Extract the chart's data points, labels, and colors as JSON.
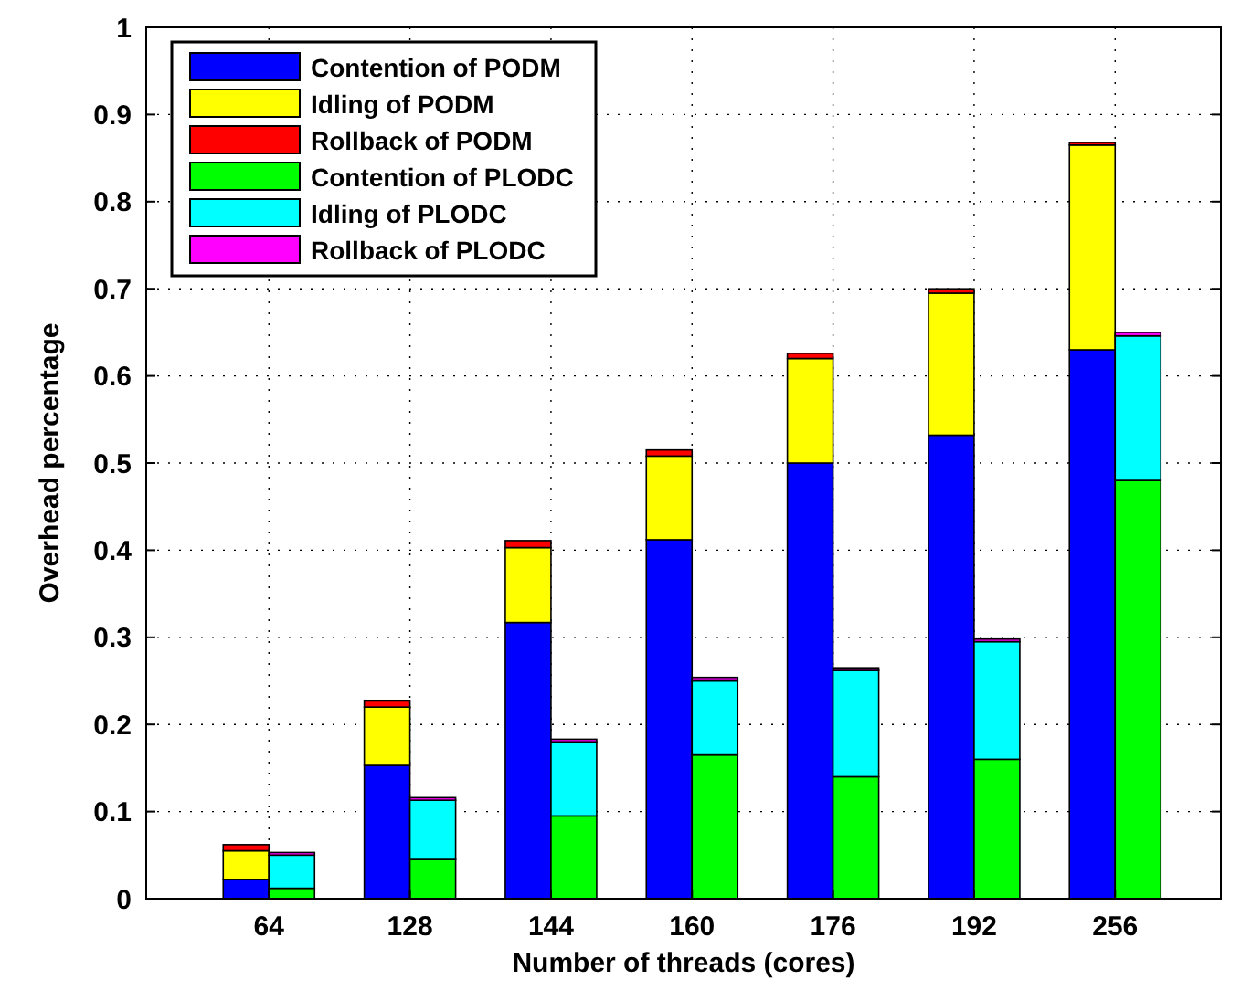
{
  "chart_data": [
    {
      "type": "bar",
      "stacked": true,
      "xlabel": "Number of threads (cores)",
      "ylabel": "Overhead percentage",
      "categories": [
        "64",
        "128",
        "144",
        "160",
        "176",
        "192",
        "256"
      ],
      "series": [
        {
          "name": "Contention of PODM",
          "color": "#0000ff",
          "values": [
            0.022,
            0.153,
            0.317,
            0.412,
            0.5,
            0.532,
            0.63
          ]
        },
        {
          "name": "Idling of PODM",
          "color": "#ffff00",
          "values": [
            0.033,
            0.067,
            0.086,
            0.096,
            0.12,
            0.163,
            0.235
          ]
        },
        {
          "name": "Rollback of PODM",
          "color": "#ff0000",
          "values": [
            0.007,
            0.007,
            0.008,
            0.007,
            0.006,
            0.005,
            0.003
          ]
        }
      ],
      "ylim": [
        0,
        1
      ],
      "yticks": [
        0,
        0.1,
        0.2,
        0.3,
        0.4,
        0.5,
        0.6,
        0.7,
        0.8,
        0.9,
        1
      ],
      "grid": true,
      "legend": "top left"
    },
    {
      "type": "bar",
      "stacked": true,
      "categories": [
        "64",
        "128",
        "144",
        "160",
        "176",
        "192",
        "256"
      ],
      "series": [
        {
          "name": "Contention of PLODC",
          "color": "#00ff00",
          "values": [
            0.012,
            0.045,
            0.095,
            0.165,
            0.14,
            0.16,
            0.48
          ]
        },
        {
          "name": "Idling of PLODC",
          "color": "#00ffff",
          "values": [
            0.038,
            0.068,
            0.085,
            0.085,
            0.122,
            0.135,
            0.166
          ]
        },
        {
          "name": "Rollback of PLODC",
          "color": "#ff00ff",
          "values": [
            0.003,
            0.003,
            0.003,
            0.004,
            0.003,
            0.003,
            0.004
          ]
        }
      ],
      "ylim": [
        0,
        1
      ],
      "yticks": [
        0,
        0.1,
        0.2,
        0.3,
        0.4,
        0.5,
        0.6,
        0.7,
        0.8,
        0.9,
        1
      ],
      "tick_labels": false,
      "legend": "top left"
    }
  ]
}
